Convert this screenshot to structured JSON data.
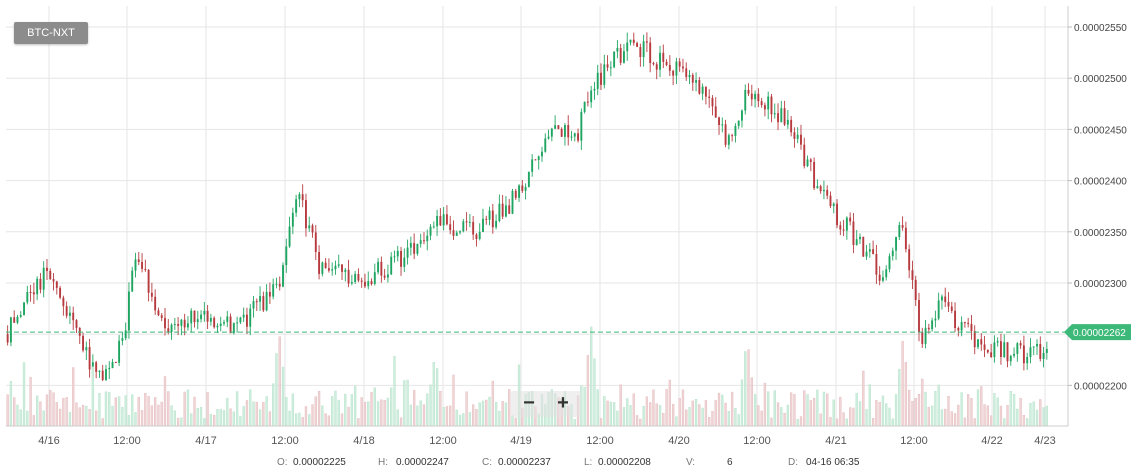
{
  "pair_label": "BTC-NXT",
  "zoom": {
    "minus": "−",
    "plus": "+"
  },
  "status": {
    "o_label": "O:",
    "o_value": "0.00002225",
    "h_label": "H:",
    "h_value": "0.00002247",
    "c_label": "C:",
    "c_value": "0.00002237",
    "l_label": "L:",
    "l_value": "0.00002208",
    "v_label": "V:",
    "v_value": "6",
    "d_label": "D:",
    "d_value": "04-16 06:35"
  },
  "colors": {
    "up": "#1fa562",
    "down": "#b73a3e",
    "volume_up": "#cdeedd",
    "volume_down": "#f0d4d5",
    "grid": "#e6e6e6",
    "price_line": "#3cb878"
  },
  "chart_data": {
    "type": "candlestick",
    "title": "",
    "xlabel": "",
    "ylabel": "",
    "x_tick_labels": [
      "4/16",
      "12:00",
      "4/17",
      "12:00",
      "4/18",
      "12:00",
      "4/19",
      "12:00",
      "4/20",
      "12:00",
      "4/21",
      "12:00",
      "4/22",
      "4/23"
    ],
    "x_start": "4/15 18:00",
    "x_end": "4/23 00:00",
    "y_tick_labels": [
      "0.00002550",
      "0.00002500",
      "0.00002450",
      "0.00002400",
      "0.00002350",
      "0.00002300",
      "0.00002250",
      "0.00002200"
    ],
    "ylim": [
      2.16e-05,
      2.56e-05
    ],
    "last_price": 2.262e-05,
    "last_price_label": "0.00002262",
    "grid": true,
    "series": [
      {
        "name": "price",
        "close_path": [
          [
            "4/15 18:00",
            2.26e-05
          ],
          [
            "4/16 00:00",
            2.32e-05
          ],
          [
            "4/16 06:00",
            2.25e-05
          ],
          [
            "4/16 08:00",
            2.215e-05
          ],
          [
            "4/16 12:00",
            2.25e-05
          ],
          [
            "4/16 14:00",
            2.34e-05
          ],
          [
            "4/16 18:00",
            2.265e-05
          ],
          [
            "4/17 00:00",
            2.275e-05
          ],
          [
            "4/17 06:00",
            2.268e-05
          ],
          [
            "4/17 12:00",
            2.31e-05
          ],
          [
            "4/17 15:00",
            2.4e-05
          ],
          [
            "4/17 18:00",
            2.33e-05
          ],
          [
            "4/18 00:00",
            2.31e-05
          ],
          [
            "4/18 06:00",
            2.33e-05
          ],
          [
            "4/18 12:00",
            2.37e-05
          ],
          [
            "4/18 18:00",
            2.36e-05
          ],
          [
            "4/19 00:00",
            2.39e-05
          ],
          [
            "4/19 06:00",
            2.46e-05
          ],
          [
            "4/19 10:00",
            2.455e-05
          ],
          [
            "4/19 12:00",
            2.5e-05
          ],
          [
            "4/19 18:00",
            2.545e-05
          ],
          [
            "4/20 00:00",
            2.52e-05
          ],
          [
            "4/20 06:00",
            2.5e-05
          ],
          [
            "4/20 09:00",
            2.44e-05
          ],
          [
            "4/20 12:00",
            2.5e-05
          ],
          [
            "4/20 18:00",
            2.47e-05
          ],
          [
            "4/21 00:00",
            2.39e-05
          ],
          [
            "4/21 06:00",
            2.345e-05
          ],
          [
            "4/21 09:00",
            2.31e-05
          ],
          [
            "4/21 12:00",
            2.37e-05
          ],
          [
            "4/21 15:00",
            2.25e-05
          ],
          [
            "4/21 18:00",
            2.29e-05
          ],
          [
            "4/22 00:00",
            2.25e-05
          ],
          [
            "4/22 06:00",
            2.24e-05
          ],
          [
            "4/23 00:00",
            2.262e-05
          ]
        ]
      },
      {
        "name": "volume",
        "peaks": [
          [
            "4/17 12:00",
            6.0
          ],
          [
            "4/18 12:00",
            4.5
          ],
          [
            "4/19 12:00",
            6.3
          ],
          [
            "4/20 12:00",
            5.6
          ],
          [
            "4/21 12:00",
            5.5
          ],
          [
            "4/21 15:00",
            3.0
          ]
        ]
      }
    ]
  }
}
